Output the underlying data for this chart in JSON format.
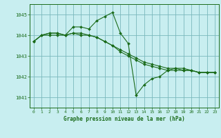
{
  "title": "Graphe pression niveau de la mer (hPa)",
  "bg_color": "#c8eef0",
  "grid_color": "#7ab8bc",
  "line_color": "#1a6b1a",
  "xlim": [
    -0.5,
    23.5
  ],
  "ylim": [
    1040.5,
    1045.5
  ],
  "yticks": [
    1041,
    1042,
    1043,
    1044,
    1045
  ],
  "xticks": [
    0,
    1,
    2,
    3,
    4,
    5,
    6,
    7,
    8,
    9,
    10,
    11,
    12,
    13,
    14,
    15,
    16,
    17,
    18,
    19,
    20,
    21,
    22,
    23
  ],
  "series": [
    [
      1043.7,
      1044.0,
      1044.0,
      1044.0,
      1044.0,
      1044.4,
      1044.4,
      1044.3,
      1044.7,
      1044.9,
      1045.1,
      1044.1,
      1043.6,
      1041.1,
      1041.6,
      1041.9,
      1042.0,
      1042.3,
      1042.4,
      1042.4,
      1042.3,
      1042.2,
      1042.2,
      1042.2
    ],
    [
      1043.7,
      1044.0,
      1044.1,
      1044.1,
      1044.0,
      1044.1,
      1044.1,
      1044.0,
      1043.9,
      1043.7,
      1043.5,
      1043.3,
      1043.1,
      1042.9,
      1042.7,
      1042.6,
      1042.5,
      1042.4,
      1042.4,
      1042.3,
      1042.3,
      1042.2,
      1042.2,
      1042.2
    ],
    [
      1043.7,
      1044.0,
      1044.1,
      1044.1,
      1044.0,
      1044.1,
      1044.0,
      1044.0,
      1043.9,
      1043.7,
      1043.5,
      1043.2,
      1043.0,
      1042.8,
      1042.6,
      1042.5,
      1042.4,
      1042.3,
      1042.3,
      1042.3,
      1042.3,
      1042.2,
      1042.2,
      1042.2
    ]
  ]
}
